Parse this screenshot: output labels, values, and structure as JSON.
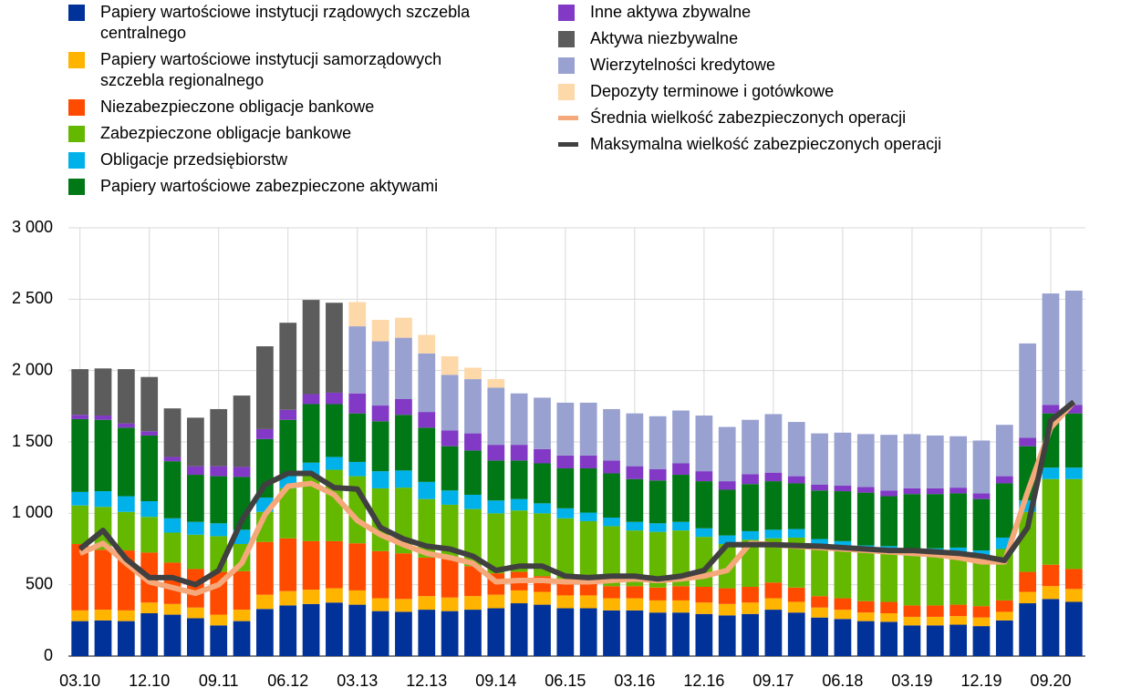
{
  "chart_data": {
    "type": "bar",
    "stacked": true,
    "categories": [
      "03.10",
      null,
      null,
      "12.10",
      null,
      null,
      "09.11",
      null,
      null,
      "06.12",
      null,
      null,
      "03.13",
      null,
      null,
      "12.13",
      null,
      null,
      "09.14",
      null,
      null,
      "06.15",
      null,
      null,
      "03.16",
      null,
      null,
      "12.16",
      null,
      null,
      "09.17",
      null,
      null,
      "06.18",
      null,
      null,
      "03.19",
      null,
      null,
      "12.19",
      null,
      null,
      "09.20",
      null
    ],
    "ylim": [
      0,
      3000
    ],
    "yticks": [
      0,
      500,
      {
        "value": 1000,
        "label": "1 000"
      },
      {
        "value": 1500,
        "label": "1 500"
      },
      {
        "value": 2000,
        "label": "2 000"
      },
      {
        "value": 2500,
        "label": "2 500"
      },
      {
        "value": 3000,
        "label": "3 000"
      }
    ],
    "grid": true,
    "series": [
      {
        "name": "Papiery wartościowe instytucji rządowych szczebla centralnego",
        "color": "#003299",
        "type": "bar",
        "values": [
          245,
          250,
          245,
          300,
          290,
          265,
          215,
          245,
          330,
          355,
          365,
          375,
          360,
          315,
          310,
          325,
          315,
          325,
          335,
          370,
          360,
          335,
          335,
          320,
          320,
          305,
          305,
          295,
          285,
          295,
          325,
          305,
          270,
          260,
          245,
          240,
          215,
          215,
          220,
          210,
          250,
          370,
          400,
          380
        ]
      },
      {
        "name": "Papiery wartościowe instytucji samorządowych szczebla regionalnego",
        "color": "#ffb400",
        "type": "bar",
        "values": [
          75,
          75,
          75,
          75,
          75,
          75,
          75,
          80,
          100,
          100,
          100,
          100,
          100,
          90,
          90,
          95,
          95,
          95,
          95,
          90,
          90,
          90,
          90,
          85,
          85,
          85,
          85,
          80,
          80,
          80,
          80,
          75,
          70,
          65,
          60,
          60,
          60,
          60,
          60,
          60,
          60,
          80,
          90,
          90
        ]
      },
      {
        "name": "Niezabezpieczone obligacje bankowe",
        "color": "#ff4b00",
        "type": "bar",
        "values": [
          465,
          420,
          420,
          350,
          290,
          270,
          300,
          270,
          370,
          370,
          340,
          330,
          330,
          330,
          320,
          270,
          270,
          210,
          150,
          130,
          110,
          100,
          90,
          85,
          85,
          90,
          100,
          110,
          110,
          110,
          110,
          100,
          80,
          80,
          80,
          80,
          80,
          80,
          80,
          80,
          80,
          140,
          150,
          140
        ]
      },
      {
        "name": "Zabezpieczone obligacje bankowe",
        "color": "#65b800",
        "type": "bar",
        "values": [
          270,
          300,
          270,
          250,
          210,
          240,
          250,
          190,
          210,
          350,
          460,
          500,
          470,
          440,
          460,
          410,
          380,
          400,
          420,
          430,
          440,
          440,
          430,
          420,
          390,
          390,
          390,
          350,
          310,
          330,
          310,
          350,
          350,
          350,
          340,
          340,
          350,
          350,
          350,
          340,
          360,
          420,
          600,
          630
        ]
      },
      {
        "name": "Obligacje przedsiębiorstw",
        "color": "#00b1ea",
        "type": "bar",
        "values": [
          95,
          110,
          110,
          110,
          100,
          90,
          90,
          100,
          100,
          90,
          90,
          90,
          100,
          120,
          120,
          120,
          100,
          100,
          90,
          80,
          70,
          70,
          60,
          60,
          60,
          60,
          60,
          60,
          60,
          60,
          60,
          60,
          50,
          50,
          50,
          50,
          50,
          50,
          50,
          50,
          80,
          80,
          80,
          80
        ]
      },
      {
        "name": "Papiery wartościowe zabezpieczone aktywami",
        "color": "#007816",
        "type": "bar",
        "values": [
          510,
          500,
          480,
          460,
          400,
          330,
          330,
          370,
          410,
          390,
          410,
          370,
          340,
          350,
          390,
          380,
          310,
          310,
          280,
          270,
          280,
          280,
          310,
          310,
          300,
          300,
          330,
          330,
          320,
          330,
          340,
          320,
          340,
          350,
          370,
          350,
          380,
          380,
          380,
          360,
          380,
          380,
          380,
          380
        ]
      },
      {
        "name": "Inne aktywa zbywalne",
        "color": "#8139c6",
        "type": "bar",
        "values": [
          30,
          30,
          30,
          30,
          30,
          60,
          70,
          70,
          70,
          70,
          70,
          80,
          140,
          110,
          110,
          110,
          110,
          120,
          110,
          110,
          100,
          90,
          90,
          90,
          90,
          80,
          80,
          70,
          60,
          70,
          60,
          50,
          40,
          40,
          40,
          40,
          40,
          40,
          40,
          40,
          50,
          60,
          60,
          60
        ]
      },
      {
        "name": "Aktywa niezbywalne",
        "color": "#5c5c5c",
        "type": "bar",
        "values": [
          320,
          330,
          380,
          380,
          340,
          340,
          400,
          500,
          580,
          610,
          660,
          630,
          0,
          0,
          0,
          0,
          0,
          0,
          0,
          0,
          0,
          0,
          0,
          0,
          0,
          0,
          0,
          0,
          0,
          0,
          0,
          0,
          0,
          0,
          0,
          0,
          0,
          0,
          0,
          0,
          0,
          0,
          0,
          0
        ]
      },
      {
        "name": "Wierzytelności kredytowe",
        "color": "#98a1d0",
        "type": "bar",
        "values": [
          0,
          0,
          0,
          0,
          0,
          0,
          0,
          0,
          0,
          0,
          0,
          0,
          470,
          450,
          430,
          410,
          390,
          380,
          400,
          360,
          360,
          370,
          370,
          360,
          370,
          370,
          370,
          390,
          380,
          380,
          410,
          380,
          360,
          370,
          370,
          390,
          380,
          370,
          360,
          370,
          360,
          660,
          780,
          800
        ]
      },
      {
        "name": "Depozyty terminowe i gotówkowe",
        "color": "#fdd8a8",
        "type": "bar",
        "values": [
          0,
          0,
          0,
          0,
          0,
          0,
          0,
          0,
          0,
          0,
          0,
          0,
          170,
          150,
          140,
          130,
          130,
          80,
          60,
          0,
          0,
          0,
          0,
          0,
          0,
          0,
          0,
          0,
          0,
          0,
          0,
          0,
          0,
          0,
          0,
          0,
          0,
          0,
          0,
          0,
          0,
          0,
          0,
          0
        ]
      },
      {
        "name": "Średnia wielkość zabezpieczonych operacji",
        "color": "#f5a87a",
        "type": "line",
        "values": [
          720,
          790,
          650,
          520,
          480,
          440,
          500,
          650,
          990,
          1190,
          1210,
          1130,
          950,
          850,
          780,
          720,
          690,
          650,
          520,
          530,
          530,
          520,
          520,
          530,
          540,
          530,
          540,
          560,
          600,
          790,
          780,
          770,
          760,
          750,
          740,
          730,
          720,
          710,
          690,
          660,
          660,
          1150,
          1600,
          1780
        ]
      },
      {
        "name": "Maksymalna wielkość zabezpieczonych operacji",
        "color": "#404040",
        "type": "line",
        "values": [
          750,
          880,
          680,
          550,
          550,
          500,
          600,
          950,
          1200,
          1280,
          1280,
          1180,
          1170,
          900,
          820,
          770,
          750,
          700,
          600,
          630,
          630,
          560,
          550,
          560,
          560,
          540,
          560,
          600,
          780,
          780,
          780,
          775,
          770,
          760,
          750,
          740,
          740,
          730,
          720,
          700,
          670,
          900,
          1650,
          1780
        ]
      }
    ]
  }
}
